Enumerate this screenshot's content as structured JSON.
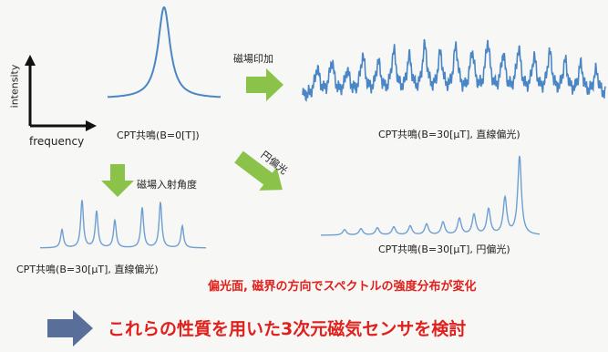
{
  "axes": {
    "y_label": "intensity",
    "x_label": "frequency"
  },
  "spectra": {
    "b0_caption": "CPT共鳴(B=0[T])",
    "b30_linear_caption": "CPT共鳴(B=30[μT], 直線偏光)",
    "b30_circular_caption": "CPT共鳴(B=30[μT], 円偏光)",
    "b30_linear_small_caption": "CPT共鳴(B=30[μT], 直線偏光)"
  },
  "arrows": {
    "field_applied": "磁場印加",
    "circular_polarization": "円偏光",
    "incidence_angle": "磁場入射角度"
  },
  "statements": {
    "change_note": "偏光面, 磁界の方向でスペクトルの強度分布が変化",
    "conclusion": "これらの性質を用いた3次元磁気センサを検討"
  },
  "colors": {
    "spectrum_line": "#4a86c5",
    "arrow_green": "#8bc34a",
    "arrow_blue": "#5a6e9a",
    "text_red": "#e0201c"
  }
}
